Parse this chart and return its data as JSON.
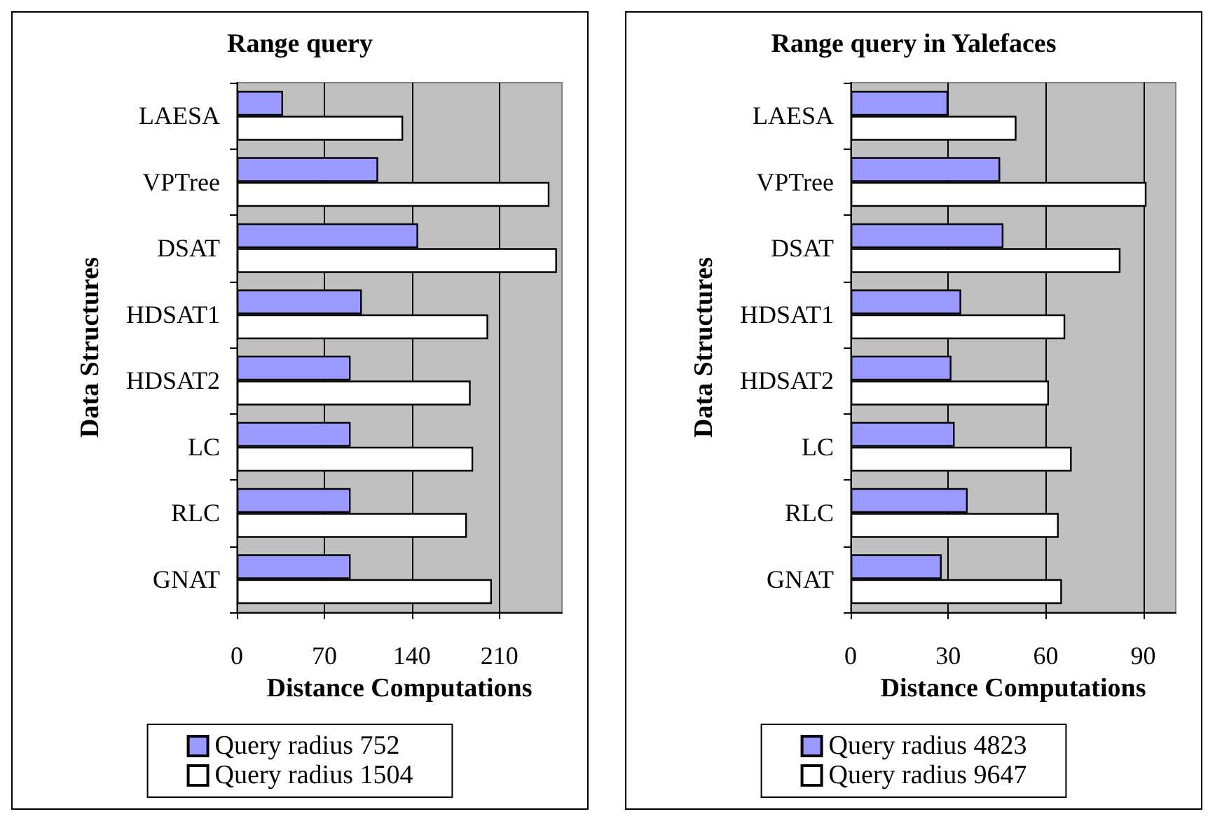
{
  "chart_data": [
    {
      "type": "bar",
      "orientation": "horizontal",
      "title": "Range query",
      "xlabel": "Distance Computations",
      "ylabel": "Data Structures",
      "categories": [
        "LAESA",
        "VPTree",
        "DSAT",
        "HDSAT1",
        "HDSAT2",
        "LC",
        "RLC",
        "GNAT"
      ],
      "series": [
        {
          "name": "Query radius 752",
          "color": "#9999ff",
          "values": [
            37,
            113,
            145,
            100,
            91,
            91,
            91,
            91
          ]
        },
        {
          "name": "Query radius 1504",
          "color": "#ffffff",
          "values": [
            133,
            250,
            256,
            201,
            187,
            189,
            184,
            204
          ]
        }
      ],
      "xlim": [
        0,
        260
      ],
      "xticks": [
        0,
        70,
        140,
        210
      ],
      "grid": "x",
      "legend": "bottom"
    },
    {
      "type": "bar",
      "orientation": "horizontal",
      "title": "Range query in Yalefaces",
      "xlabel": "Distance Computations",
      "ylabel": "Data Structures",
      "categories": [
        "LAESA",
        "VPTree",
        "DSAT",
        "HDSAT1",
        "HDSAT2",
        "LC",
        "RLC",
        "GNAT"
      ],
      "series": [
        {
          "name": "Query radius 4823",
          "color": "#9999ff",
          "values": [
            30,
            46,
            47,
            34,
            31,
            32,
            36,
            28
          ]
        },
        {
          "name": "Query radius 9647",
          "color": "#ffffff",
          "values": [
            51,
            91,
            83,
            66,
            61,
            68,
            64,
            65
          ]
        }
      ],
      "xlim": [
        0,
        100
      ],
      "xticks": [
        0,
        30,
        60,
        90
      ],
      "grid": "x",
      "legend": "bottom"
    }
  ]
}
